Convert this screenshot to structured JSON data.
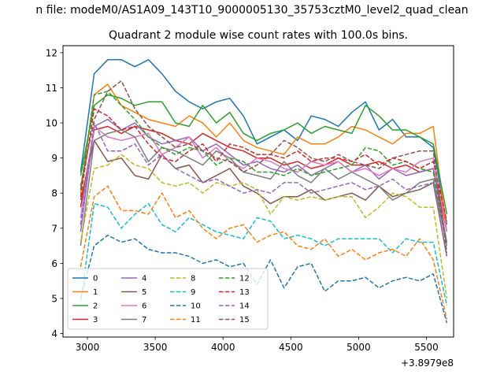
{
  "figure": {
    "suptitle": "n file: modeM0/AS1A09_143T10_9000005130_35753cztM0_level2_quad_clean",
    "title": "Quadrant 2 module wise count rates with 100.0s bins.",
    "x_offset_label": "+3.8979e8"
  },
  "chart_data": {
    "type": "line",
    "title": "Quadrant 2 module wise count rates with 100.0s bins.",
    "xlabel": "",
    "ylabel": "",
    "x_offset": 389790000,
    "xlim": [
      2820,
      5700
    ],
    "ylim": [
      3.9,
      12.2
    ],
    "xticks": [
      3000,
      3500,
      4000,
      4500,
      5000,
      5500
    ],
    "yticks": [
      4,
      5,
      6,
      7,
      8,
      9,
      10,
      11,
      12
    ],
    "grid": false,
    "legend": {
      "placement": "lower-left",
      "columns": 4
    },
    "x": [
      2950,
      3050,
      3150,
      3250,
      3350,
      3450,
      3550,
      3650,
      3750,
      3850,
      3950,
      4050,
      4150,
      4250,
      4350,
      4450,
      4550,
      4650,
      4750,
      4850,
      4950,
      5050,
      5150,
      5250,
      5350,
      5450,
      5550,
      5650
    ],
    "series": [
      {
        "name": "0",
        "color": "#1f77b4",
        "dash": "solid",
        "values": [
          8.6,
          11.4,
          11.8,
          11.8,
          11.6,
          11.8,
          11.4,
          10.9,
          10.6,
          10.4,
          10.6,
          10.7,
          10.2,
          9.4,
          9.6,
          9.8,
          9.5,
          10.2,
          10.1,
          9.9,
          10.3,
          10.6,
          9.8,
          10.1,
          9.6,
          9.6,
          9.3,
          7.1
        ]
      },
      {
        "name": "1",
        "color": "#ff7f0e",
        "dash": "solid",
        "values": [
          8.0,
          10.8,
          11.1,
          10.5,
          10.3,
          10.1,
          10.0,
          9.9,
          10.2,
          10.0,
          9.6,
          10.0,
          9.5,
          9.3,
          9.2,
          9.1,
          9.6,
          9.4,
          9.4,
          9.6,
          9.9,
          9.8,
          9.6,
          9.4,
          9.7,
          9.7,
          9.9,
          6.9
        ]
      },
      {
        "name": "2",
        "color": "#2ca02c",
        "dash": "solid",
        "values": [
          8.5,
          10.5,
          10.8,
          10.7,
          10.5,
          10.6,
          10.6,
          10.0,
          9.9,
          10.5,
          10.0,
          10.3,
          9.7,
          9.5,
          9.7,
          9.8,
          10.0,
          9.7,
          9.9,
          9.8,
          9.7,
          10.5,
          10.2,
          9.8,
          9.8,
          9.6,
          9.4,
          7.4
        ]
      },
      {
        "name": "3",
        "color": "#d62728",
        "dash": "solid",
        "values": [
          7.6,
          9.8,
          9.9,
          9.7,
          9.9,
          9.8,
          9.7,
          9.5,
          9.4,
          9.7,
          9.5,
          9.3,
          9.2,
          9.0,
          9.0,
          8.8,
          8.9,
          8.7,
          8.8,
          9.0,
          8.8,
          8.8,
          8.9,
          8.7,
          8.8,
          8.6,
          8.7,
          6.9
        ]
      },
      {
        "name": "4",
        "color": "#9467bd",
        "dash": "solid",
        "values": [
          6.9,
          9.9,
          10.1,
          9.8,
          10.0,
          9.6,
          9.4,
          9.5,
          9.6,
          9.2,
          9.4,
          9.1,
          8.8,
          8.9,
          8.7,
          8.6,
          8.8,
          8.5,
          8.7,
          8.9,
          8.6,
          8.8,
          8.4,
          8.7,
          8.5,
          8.6,
          8.7,
          6.6
        ]
      },
      {
        "name": "5",
        "color": "#8c564b",
        "dash": "solid",
        "values": [
          7.8,
          9.5,
          8.9,
          9.0,
          8.5,
          8.4,
          9.1,
          8.7,
          8.8,
          8.3,
          8.5,
          8.7,
          8.2,
          8.0,
          7.7,
          7.9,
          7.9,
          8.1,
          7.8,
          7.9,
          8.0,
          7.8,
          8.2,
          7.9,
          8.0,
          8.1,
          8.3,
          6.2
        ]
      },
      {
        "name": "6",
        "color": "#e377c2",
        "dash": "solid",
        "values": [
          7.3,
          9.9,
          9.6,
          9.5,
          9.6,
          9.7,
          9.1,
          9.3,
          9.6,
          9.0,
          9.3,
          8.9,
          8.7,
          9.0,
          8.9,
          8.7,
          8.6,
          8.9,
          8.8,
          8.9,
          8.6,
          8.7,
          8.5,
          8.7,
          8.6,
          8.9,
          9.0,
          6.9
        ]
      },
      {
        "name": "7",
        "color": "#7f7f7f",
        "dash": "solid",
        "values": [
          6.5,
          9.5,
          9.7,
          9.8,
          9.6,
          8.9,
          9.3,
          9.2,
          9.0,
          8.8,
          9.2,
          9.0,
          8.6,
          8.5,
          8.4,
          8.9,
          8.5,
          8.3,
          8.7,
          8.4,
          8.6,
          8.4,
          8.2,
          7.8,
          8.0,
          8.3,
          8.4,
          6.5
        ]
      },
      {
        "name": "8",
        "color": "#bcbd22",
        "dash": "dashed",
        "values": [
          6.6,
          8.7,
          8.8,
          9.1,
          8.8,
          8.7,
          8.3,
          8.2,
          8.3,
          8.0,
          8.3,
          8.2,
          8.3,
          8.1,
          7.4,
          7.9,
          7.8,
          7.9,
          7.8,
          7.9,
          7.9,
          7.3,
          7.6,
          8.0,
          7.9,
          7.6,
          7.6,
          5.0
        ]
      },
      {
        "name": "9",
        "color": "#17becf",
        "dash": "dashed",
        "values": [
          4.9,
          7.7,
          7.6,
          7.0,
          7.4,
          7.7,
          7.1,
          6.9,
          7.3,
          7.1,
          6.9,
          6.8,
          6.7,
          7.3,
          7.2,
          6.7,
          6.8,
          6.7,
          6.5,
          6.7,
          6.7,
          6.7,
          6.7,
          6.3,
          6.7,
          6.6,
          6.6,
          4.8
        ]
      },
      {
        "name": "10",
        "color": "#1f77b4",
        "dash": "dashed",
        "values": [
          5.0,
          6.5,
          6.8,
          6.6,
          6.7,
          6.4,
          6.3,
          6.3,
          6.2,
          6.0,
          6.1,
          5.9,
          6.0,
          5.4,
          6.1,
          5.3,
          5.9,
          6.0,
          5.2,
          5.5,
          5.5,
          5.6,
          5.3,
          5.5,
          5.6,
          5.5,
          5.7,
          4.3
        ]
      },
      {
        "name": "11",
        "color": "#ff7f0e",
        "dash": "dashed",
        "values": [
          5.9,
          7.9,
          8.2,
          7.5,
          7.5,
          7.4,
          8.0,
          7.3,
          7.5,
          7.0,
          6.7,
          7.0,
          7.1,
          6.6,
          6.8,
          6.9,
          6.5,
          6.4,
          6.7,
          6.2,
          6.4,
          6.1,
          6.3,
          6.4,
          6.2,
          6.7,
          6.1,
          4.4
        ]
      },
      {
        "name": "12",
        "color": "#2ca02c",
        "dash": "dashed",
        "values": [
          8.1,
          10.8,
          10.9,
          10.5,
          10.1,
          9.6,
          9.3,
          9.1,
          9.3,
          9.2,
          8.8,
          9.0,
          8.9,
          8.6,
          8.6,
          8.5,
          8.7,
          8.5,
          8.6,
          8.7,
          8.8,
          9.3,
          9.2,
          8.8,
          8.9,
          8.7,
          8.6,
          6.5
        ]
      },
      {
        "name": "13",
        "color": "#d62728",
        "dash": "dashed",
        "values": [
          7.9,
          10.4,
          10.2,
          9.8,
          9.9,
          9.4,
          9.0,
          8.9,
          9.2,
          9.4,
          8.9,
          9.4,
          9.3,
          9.1,
          9.1,
          9.0,
          9.2,
          8.9,
          9.0,
          9.0,
          8.9,
          9.1,
          8.8,
          9.0,
          8.9,
          8.7,
          8.9,
          7.2
        ]
      },
      {
        "name": "14",
        "color": "#9467bd",
        "dash": "dashed",
        "values": [
          7.1,
          10.0,
          9.2,
          9.2,
          9.4,
          8.8,
          9.1,
          8.7,
          8.5,
          8.3,
          8.4,
          8.2,
          8.0,
          8.1,
          8.0,
          8.3,
          8.3,
          8.0,
          8.1,
          8.2,
          8.3,
          8.1,
          8.2,
          8.4,
          8.1,
          8.2,
          8.3,
          6.2
        ]
      },
      {
        "name": "15",
        "color": "#8c564b",
        "dash": "dashed",
        "values": [
          8.2,
          10.1,
          10.9,
          11.2,
          10.4,
          9.9,
          9.6,
          9.3,
          9.4,
          9.2,
          9.0,
          8.9,
          8.6,
          8.8,
          9.1,
          9.5,
          9.3,
          9.0,
          8.9,
          9.1,
          8.9,
          8.8,
          8.7,
          9.0,
          9.1,
          9.2,
          9.2,
          6.3
        ]
      }
    ]
  }
}
